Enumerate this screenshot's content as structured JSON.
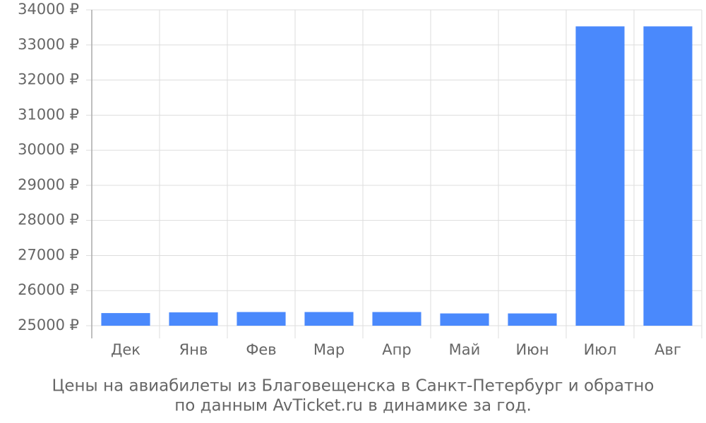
{
  "chart_data": {
    "type": "bar",
    "title": [
      "Цены на авиабилеты из Благовещенска в Санкт-Петербург и обратно",
      "по данным AvTicket.ru в динамике за год."
    ],
    "categories": [
      "Дек",
      "Янв",
      "Фев",
      "Мар",
      "Апр",
      "Май",
      "Июн",
      "Июл",
      "Авг"
    ],
    "values": [
      25360,
      25380,
      25390,
      25390,
      25390,
      25350,
      25350,
      33530,
      33530
    ],
    "color": "#4a89fc",
    "ylim": [
      25000,
      34000
    ],
    "yticks": [
      {
        "value": 25000,
        "label": "25000 ₽"
      },
      {
        "value": 26000,
        "label": "26000 ₽"
      },
      {
        "value": 27000,
        "label": "27000 ₽"
      },
      {
        "value": 28000,
        "label": "28000 ₽"
      },
      {
        "value": 29000,
        "label": "29000 ₽"
      },
      {
        "value": 30000,
        "label": "30000 ₽"
      },
      {
        "value": 31000,
        "label": "31000 ₽"
      },
      {
        "value": 32000,
        "label": "32000 ₽"
      },
      {
        "value": 33000,
        "label": "33000 ₽"
      },
      {
        "value": 34000,
        "label": "34000 ₽"
      }
    ],
    "grid": true
  }
}
